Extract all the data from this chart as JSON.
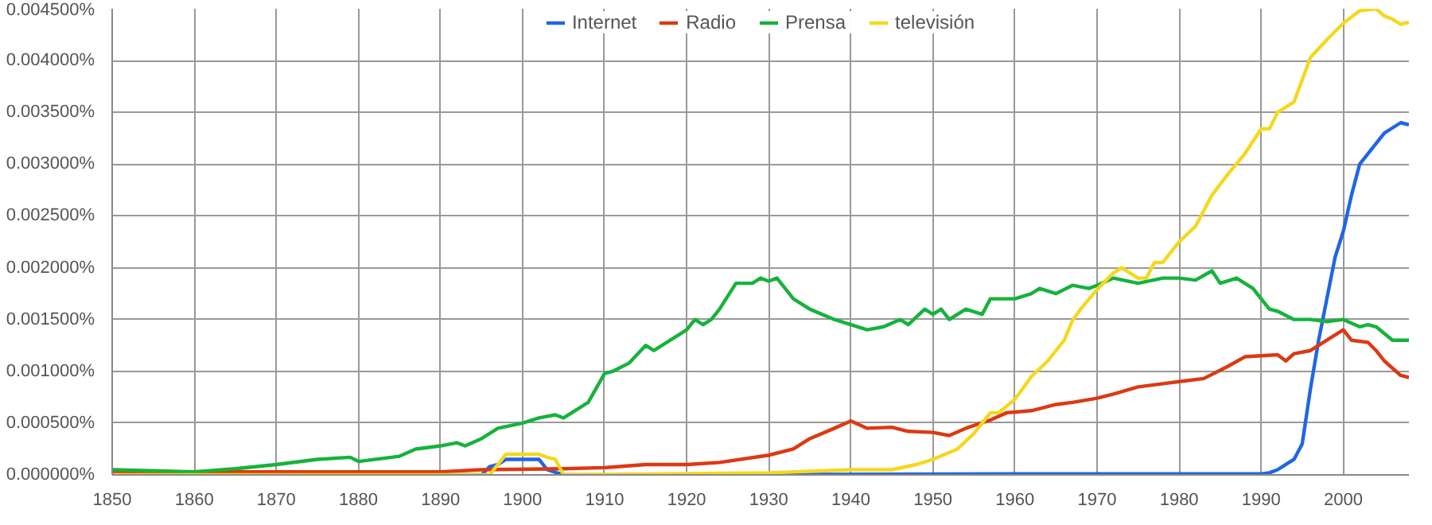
{
  "chart_data": {
    "type": "line",
    "legend": "top",
    "grid": true,
    "xlim": [
      1850,
      2008
    ],
    "xticks": [
      1850,
      1860,
      1870,
      1880,
      1890,
      1900,
      1910,
      1920,
      1930,
      1940,
      1950,
      1960,
      1970,
      1980,
      1990,
      2000
    ],
    "ylim": [
      0,
      0.0045
    ],
    "yticks": [
      {
        "value": 0,
        "label": "0.000000%"
      },
      {
        "value": 0.0005,
        "label": "0.000500%"
      },
      {
        "value": 0.001,
        "label": "0.001000%"
      },
      {
        "value": 0.0015,
        "label": "0.001500%"
      },
      {
        "value": 0.002,
        "label": "0.002000%"
      },
      {
        "value": 0.0025,
        "label": "0.002500%"
      },
      {
        "value": 0.003,
        "label": "0.003000%"
      },
      {
        "value": 0.0035,
        "label": "0.003500%"
      },
      {
        "value": 0.004,
        "label": "0.004000%"
      },
      {
        "value": 0.0045,
        "label": "0.004500%"
      }
    ],
    "series": [
      {
        "name": "Internet",
        "color": "#1f66e5",
        "x": [
          1850,
          1895,
          1896,
          1897,
          1898,
          1902,
          1903,
          1905,
          1965,
          1990,
          1991,
          1992,
          1993,
          1994,
          1995,
          1996,
          1997,
          1998,
          1999,
          2000,
          2001,
          2002,
          2003,
          2004,
          2005,
          2006,
          2007,
          2008
        ],
        "values": [
          0,
          0,
          8e-05,
          0.0001,
          0.00015,
          0.00015,
          5e-05,
          0,
          1e-05,
          1e-05,
          2e-05,
          5e-05,
          0.0001,
          0.00015,
          0.0003,
          0.00083,
          0.0013,
          0.0017,
          0.0021,
          0.00235,
          0.0027,
          0.003,
          0.0031,
          0.0032,
          0.0033,
          0.00335,
          0.0034,
          0.00338
        ]
      },
      {
        "name": "Radio",
        "color": "#dc3912",
        "x": [
          1850,
          1890,
          1895,
          1905,
          1910,
          1915,
          1920,
          1924,
          1930,
          1933,
          1935,
          1938,
          1940,
          1942,
          1945,
          1947,
          1950,
          1952,
          1954,
          1957,
          1959,
          1962,
          1965,
          1967,
          1970,
          1972,
          1975,
          1978,
          1980,
          1983,
          1986,
          1988,
          1990,
          1992,
          1993,
          1994,
          1996,
          1998,
          2000,
          2001,
          2003,
          2004,
          2005,
          2007,
          2008
        ],
        "values": [
          3e-05,
          3e-05,
          5e-05,
          6e-05,
          7e-05,
          0.0001,
          0.0001,
          0.00012,
          0.00019,
          0.00025,
          0.00035,
          0.00045,
          0.00052,
          0.00045,
          0.00046,
          0.00042,
          0.00041,
          0.00038,
          0.00045,
          0.00053,
          0.0006,
          0.00062,
          0.00068,
          0.0007,
          0.00074,
          0.00078,
          0.00085,
          0.00088,
          0.0009,
          0.00093,
          0.00105,
          0.00114,
          0.00115,
          0.00116,
          0.0011,
          0.00117,
          0.0012,
          0.0013,
          0.0014,
          0.0013,
          0.00128,
          0.0012,
          0.0011,
          0.00096,
          0.00094
        ]
      },
      {
        "name": "Prensa",
        "color": "#16b23c",
        "x": [
          1850,
          1860,
          1865,
          1870,
          1875,
          1879,
          1880,
          1885,
          1887,
          1890,
          1892,
          1893,
          1895,
          1897,
          1900,
          1902,
          1904,
          1905,
          1908,
          1910,
          1911,
          1913,
          1915,
          1916,
          1918,
          1920,
          1921,
          1922,
          1923,
          1924,
          1926,
          1928,
          1929,
          1930,
          1931,
          1933,
          1935,
          1938,
          1940,
          1942,
          1944,
          1946,
          1947,
          1949,
          1950,
          1951,
          1952,
          1954,
          1956,
          1957,
          1960,
          1962,
          1963,
          1965,
          1967,
          1969,
          1970,
          1972,
          1975,
          1978,
          1980,
          1982,
          1984,
          1985,
          1987,
          1989,
          1991,
          1992,
          1994,
          1996,
          1998,
          2000,
          2002,
          2003,
          2004,
          2006,
          2008
        ],
        "values": [
          5e-05,
          3e-05,
          6e-05,
          0.0001,
          0.00015,
          0.00017,
          0.00013,
          0.00018,
          0.00025,
          0.00028,
          0.00031,
          0.00028,
          0.00035,
          0.00045,
          0.0005,
          0.00055,
          0.00058,
          0.00055,
          0.0007,
          0.00098,
          0.001,
          0.00108,
          0.00125,
          0.0012,
          0.0013,
          0.0014,
          0.0015,
          0.00145,
          0.0015,
          0.0016,
          0.00185,
          0.00185,
          0.0019,
          0.00187,
          0.0019,
          0.0017,
          0.0016,
          0.0015,
          0.00145,
          0.0014,
          0.00143,
          0.0015,
          0.00145,
          0.0016,
          0.00155,
          0.0016,
          0.0015,
          0.0016,
          0.00155,
          0.0017,
          0.0017,
          0.00175,
          0.0018,
          0.00175,
          0.00183,
          0.0018,
          0.00183,
          0.0019,
          0.00185,
          0.0019,
          0.0019,
          0.00188,
          0.00197,
          0.00185,
          0.0019,
          0.0018,
          0.0016,
          0.00158,
          0.0015,
          0.0015,
          0.00148,
          0.0015,
          0.00143,
          0.00145,
          0.00143,
          0.0013,
          0.0013
        ]
      },
      {
        "name": "televisión",
        "color": "#f4d81e",
        "x": [
          1850,
          1896,
          1897,
          1898,
          1902,
          1903,
          1904,
          1905,
          1930,
          1940,
          1945,
          1948,
          1950,
          1953,
          1955,
          1957,
          1958,
          1960,
          1962,
          1964,
          1966,
          1967,
          1968,
          1970,
          1972,
          1973,
          1975,
          1976,
          1977,
          1978,
          1980,
          1982,
          1984,
          1986,
          1988,
          1990,
          1991,
          1992,
          1994,
          1996,
          1998,
          2000,
          2002,
          2004,
          2005,
          2006,
          2007,
          2008
        ],
        "values": [
          0,
          0,
          0.0001,
          0.0002,
          0.0002,
          0.00017,
          0.00015,
          0,
          2e-05,
          5e-05,
          5e-05,
          0.0001,
          0.00015,
          0.00025,
          0.0004,
          0.0006,
          0.0006,
          0.00073,
          0.00095,
          0.0011,
          0.0013,
          0.00149,
          0.0016,
          0.00179,
          0.00195,
          0.002,
          0.0019,
          0.0019,
          0.00205,
          0.00205,
          0.00225,
          0.0024,
          0.0027,
          0.00291,
          0.0031,
          0.00334,
          0.00334,
          0.0035,
          0.0036,
          0.00403,
          0.0042,
          0.00436,
          0.00448,
          0.0045,
          0.00443,
          0.0044,
          0.00435,
          0.00437
        ]
      }
    ]
  }
}
